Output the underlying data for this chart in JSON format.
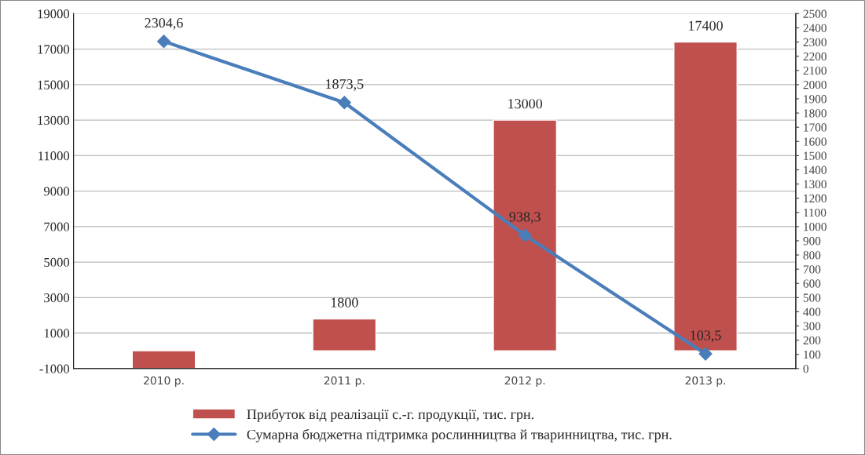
{
  "chart_data": {
    "type": "bar",
    "categories": [
      "2010 р.",
      "2011 р.",
      "2012 р.",
      "2013 р."
    ],
    "series": [
      {
        "name": "Прибуток від реалізації с.-г. продукції, тис. грн.",
        "color": "#c0504d",
        "values": [
          -1000,
          1800,
          13000,
          17400
        ],
        "value_labels": [
          null,
          "1800",
          "13000",
          "17400"
        ]
      },
      {
        "name": "Сумарна бюджетна підтримка рослинництва й тваринництва, тис. грн.",
        "type": "line",
        "axis": "y2",
        "color": "#4a7ebb",
        "marker": "diamond",
        "values": [
          2304.6,
          1873.5,
          938.3,
          103.5
        ],
        "value_labels": [
          "2304,6",
          "1873,5",
          "938,3",
          "103,5"
        ]
      }
    ],
    "ylim": [
      -1000,
      19000
    ],
    "yticks": [
      -1000,
      1000,
      3000,
      5000,
      7000,
      9000,
      11000,
      13000,
      15000,
      17000,
      19000
    ],
    "y2lim": [
      0,
      2500
    ],
    "y2ticks": [
      0,
      100,
      200,
      300,
      400,
      500,
      600,
      700,
      800,
      900,
      1000,
      1100,
      1200,
      1300,
      1400,
      1500,
      1600,
      1700,
      1800,
      1900,
      2000,
      2100,
      2200,
      2300,
      2400,
      2500
    ],
    "grid": "y",
    "legend": "bottom"
  }
}
